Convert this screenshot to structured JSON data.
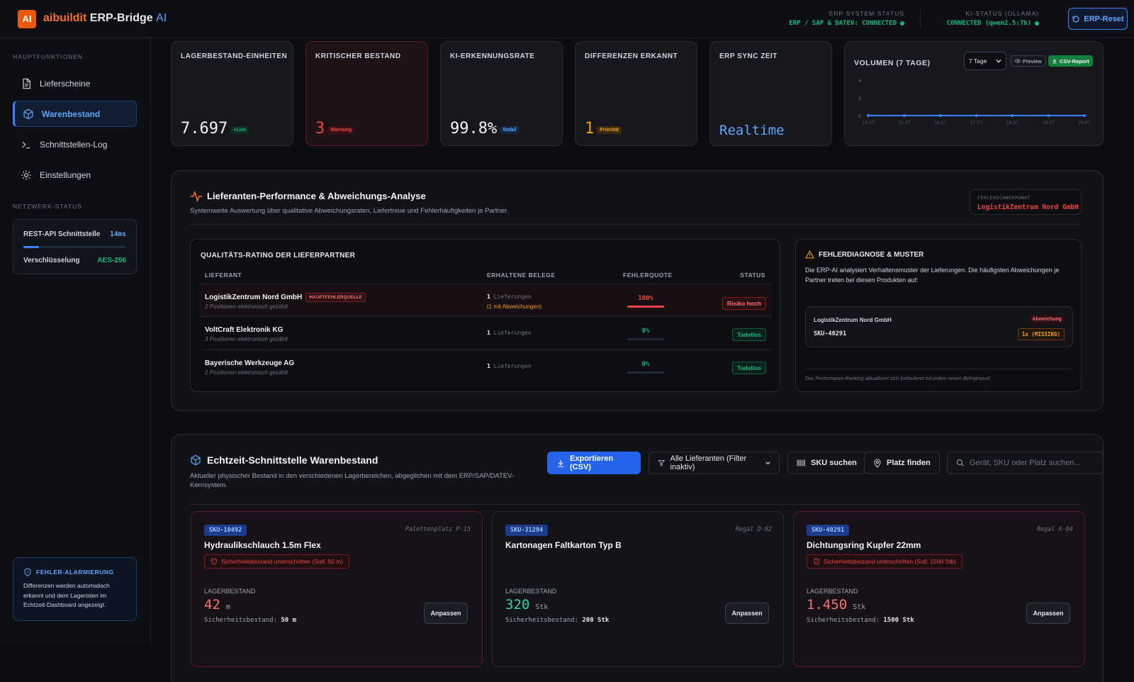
{
  "header": {
    "logo": "AI",
    "brand_part1": "aibuildit",
    "brand_part2": "ERP-Bridge",
    "brand_part3": "AI",
    "erp_status_label": "ERP SYSTEM STATUS",
    "erp_status_value": "ERP / SAP & DATEV: CONNECTED",
    "ki_status_label": "KI-STATUS (OLLAMA)",
    "ki_status_value": "CONNECTED (qwen2.5:7b)",
    "reset_label": "ERP-Reset"
  },
  "sidebar": {
    "section_main": "HAUPTFUNKTIONEN",
    "items": [
      {
        "label": "Lieferscheine",
        "icon": "document-icon"
      },
      {
        "label": "Warenbestand",
        "icon": "box-icon",
        "active": true
      },
      {
        "label": "Schnittstellen-Log",
        "icon": "terminal-icon"
      },
      {
        "label": "Einstellungen",
        "icon": "gear-icon"
      }
    ],
    "section_net": "NETZWERK-STATUS",
    "net": {
      "api_label": "REST-API Schnittstelle",
      "api_value": "14ms",
      "api_load_fraction": 0.15,
      "enc_label": "Verschlüsselung",
      "enc_value": "AES-256"
    },
    "alert": {
      "title": "FEHLER-ALARMIERUNG",
      "text": "Differenzen werden automatisch erkannt und dem Lageristen im Echtzeit-Dashboard angezeigt."
    }
  },
  "kpis": [
    {
      "label": "LAGERBESTAND-EINHEITEN",
      "value": "7.697",
      "badge": "+Live",
      "badge_color": "#10b981"
    },
    {
      "label": "KRITISCHER BESTAND",
      "value": "3",
      "badge": "Warnung",
      "badge_color": "#ef4444"
    },
    {
      "label": "KI-ERKENNUNGSRATE",
      "value": "99.8%",
      "badge": "Stabil",
      "badge_color": "#60a5fa"
    },
    {
      "label": "DIFFERENZEN ERKANNT",
      "value": "1",
      "badge": "Priorität",
      "badge_color": "#f59e0b"
    },
    {
      "label": "ERP SYNC ZEIT",
      "value": "Realtime",
      "badge": "",
      "badge_color": "#60a5fa"
    }
  ],
  "chart_data": {
    "type": "line",
    "title": "VOLUMEN (7 TAGE)",
    "x": [
      "14.07",
      "15.07",
      "16.07",
      "17.07",
      "18.07",
      "19.07",
      "20.07"
    ],
    "series": [
      {
        "values": [
          0,
          0,
          0,
          0,
          0,
          0,
          0
        ]
      }
    ],
    "ylim": [
      0,
      4
    ],
    "yticks": [
      0,
      2,
      4
    ],
    "grid": false,
    "range_select": "7 Tage",
    "preview_label": "Preview",
    "csv_label": "CSV-Report",
    "line_color": "#3b82f6"
  },
  "perf": {
    "title": "Lieferanten-Performance & Abweichungs-Analyse",
    "subtitle": "Systemweite Auswertung über qualitative Abweichungsraten, Liefertreue und Fehlerhäufigkeiten je Partner.",
    "hotspot_label": "FEHLERSCHWERPUNKT",
    "hotspot_value": "LogistikZentrum Nord GmbH",
    "rating_title": "QUALITÄTS-RATING DER LIEFERPARTNER",
    "columns": [
      "LIEFERANT",
      "ERHALTENE BELEGE",
      "FEHLERQUOTE",
      "STATUS"
    ],
    "rows": [
      {
        "name": "LogistikZentrum Nord GmbH",
        "tag": "HAUPTFEHLERQUELLE",
        "sub": "2 Positionen elektronisch gezählt",
        "count": "1",
        "count_label": "Lieferungen",
        "count_extra": "(1 mit Abweichungen)",
        "rate": "100%",
        "rate_fraction": 1.0,
        "status": "Risiko hoch",
        "bad": true
      },
      {
        "name": "VoltCraft Elektronik KG",
        "tag": "",
        "sub": "3 Positionen elektronisch gezählt",
        "count": "1",
        "count_label": "Lieferungen",
        "count_extra": "",
        "rate": "0%",
        "rate_fraction": 0.0,
        "status": "Tadellos",
        "bad": false
      },
      {
        "name": "Bayerische Werkzeuge AG",
        "tag": "",
        "sub": "2 Positionen elektronisch gezählt",
        "count": "1",
        "count_label": "Lieferungen",
        "count_extra": "",
        "rate": "0%",
        "rate_fraction": 0.0,
        "status": "Tadellos",
        "bad": false
      }
    ],
    "diag_title": "FEHLERDIAGNOSE & MUSTER",
    "diag_text": "Die ERP-AI analysiert Verhaltensmuster der Lieferungen. Die häufigsten Abweichungen je Partner treten bei diesen Produkten auf:",
    "diag_card": {
      "supplier": "LogistikZentrum Nord GmbH",
      "tag": "Abweichung",
      "sku": "SKU-40291",
      "count": "1x (MISSING)"
    },
    "diag_footer": "Das Performance-Ranking aktualisiert sich fortlaufend mit jedem neuen Belegimport."
  },
  "stock": {
    "title": "Echtzeit-Schnittstelle Warenbestand",
    "subtitle": "Aktueller physischer Bestand in den verschiedenen Lagerbereichen, abgeglichen mit dem ERP/SAP/DATEV-Kernsystem.",
    "export_label": "Exportieren (CSV)",
    "filter_label": "Alle Lieferanten (Filter inaktiv)",
    "sku_search_label": "SKU suchen",
    "place_label": "Platz finden",
    "search_placeholder": "Gerät, SKU oder Platz suchen...",
    "stock_label": "LAGERBESTAND",
    "safety_label": "Sicherheitsbestand:",
    "adjust_label": "Anpassen",
    "cards": [
      {
        "sku": "SKU-10492",
        "place": "Palettenplatz P-15",
        "name": "Hydraulikschlauch 1.5m Flex",
        "warning": "Sicherheitsbestand unterschritten (Soll: 50 m)",
        "qty": "42",
        "unit": "m",
        "safety": "50 m",
        "critical": true
      },
      {
        "sku": "SKU-31294",
        "place": "Regal D-02",
        "name": "Kartonagen Faltkarton Typ B",
        "warning": "",
        "qty": "320",
        "unit": "Stk",
        "safety": "200 Stk",
        "critical": false
      },
      {
        "sku": "SKU-40291",
        "place": "Regal A-04",
        "name": "Dichtungsring Kupfer 22mm",
        "warning": "Sicherheitsbestand unterschritten (Soll: 1500 Stk)",
        "qty": "1.450",
        "unit": "Stk",
        "safety": "1500 Stk",
        "critical": true
      }
    ]
  }
}
